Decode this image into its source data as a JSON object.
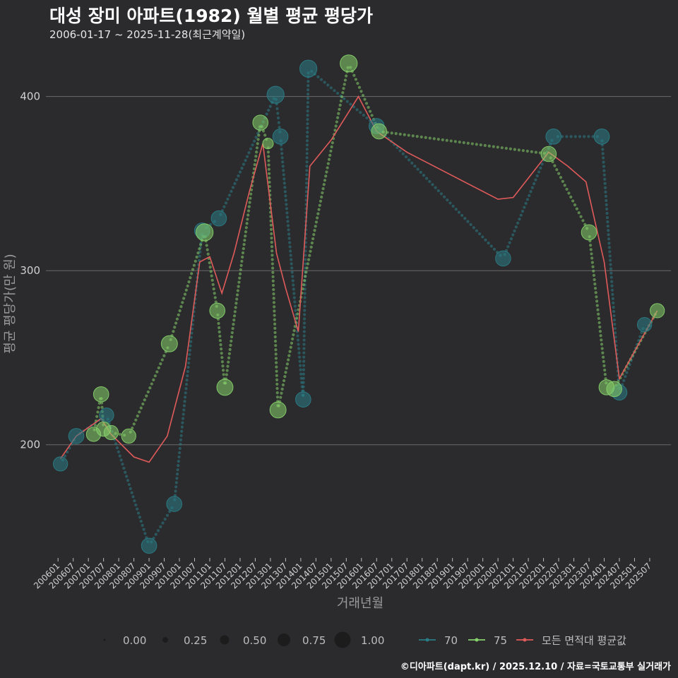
{
  "header": {
    "title": "대성 장미 아파트(1982) 월별 평균 평당가",
    "subtitle": "2006-01-17 ~ 2025-11-28(최근계약일)"
  },
  "footer": {
    "credit": "©디아파트(dapt.kr) / 2025.12.10 / 자료=국토교통부 실거래가"
  },
  "colors": {
    "background": "#2b2b2d",
    "grid": "#6b6b6b",
    "s70": "#2a7d86",
    "s75": "#86d16b",
    "avg": "#e05a5a"
  },
  "chart_data": {
    "type": "scatter",
    "title": "대성 장미 아파트(1982) 월별 평균 평당가",
    "xlabel": "거래년월",
    "ylabel": "평균 평당가(만 원)",
    "ylim": [
      135,
      425
    ],
    "yticks": [
      200,
      300,
      400
    ],
    "xticks": [
      "200601",
      "200607",
      "200701",
      "200707",
      "200801",
      "200807",
      "200901",
      "200907",
      "201001",
      "201007",
      "201101",
      "201107",
      "201201",
      "201207",
      "201301",
      "201307",
      "201401",
      "201407",
      "201501",
      "201507",
      "201601",
      "201607",
      "201701",
      "201707",
      "201801",
      "201807",
      "201901",
      "201907",
      "202001",
      "202007",
      "202101",
      "202107",
      "202201",
      "202207",
      "202301",
      "202307",
      "202401",
      "202407",
      "202501",
      "202507"
    ],
    "size_legend": {
      "values": [
        "0.00",
        "0.25",
        "0.50",
        "0.75",
        "1.00"
      ]
    },
    "series": [
      {
        "name": "70",
        "color": "#2a7d86",
        "points": [
          [
            2006.08,
            189,
            0.55
          ],
          [
            2006.6,
            205,
            0.6
          ],
          [
            2007.6,
            217,
            0.55
          ],
          [
            2009.0,
            142,
            0.6
          ],
          [
            2009.83,
            166,
            0.6
          ],
          [
            2010.75,
            323,
            0.6
          ],
          [
            2011.3,
            330,
            0.6
          ],
          [
            2013.17,
            401,
            0.7
          ],
          [
            2013.33,
            377,
            0.6
          ],
          [
            2014.08,
            226,
            0.6
          ],
          [
            2014.25,
            416,
            0.7
          ],
          [
            2016.5,
            383,
            0.6
          ],
          [
            2020.67,
            307,
            0.6
          ],
          [
            2022.33,
            377,
            0.6
          ],
          [
            2023.92,
            377,
            0.6
          ],
          [
            2024.5,
            230,
            0.6
          ],
          [
            2025.33,
            269,
            0.55
          ]
        ]
      },
      {
        "name": "75",
        "color": "#86d16b",
        "points": [
          [
            2007.17,
            206,
            0.55
          ],
          [
            2007.42,
            229,
            0.6
          ],
          [
            2007.5,
            209,
            0.55
          ],
          [
            2007.75,
            207,
            0.55
          ],
          [
            2008.33,
            205,
            0.55
          ],
          [
            2009.67,
            258,
            0.65
          ],
          [
            2010.83,
            322,
            0.7
          ],
          [
            2011.25,
            277,
            0.6
          ],
          [
            2011.5,
            233,
            0.65
          ],
          [
            2012.67,
            385,
            0.6
          ],
          [
            2012.92,
            373,
            0.35
          ],
          [
            2013.25,
            220,
            0.65
          ],
          [
            2015.58,
            419,
            0.7
          ],
          [
            2016.58,
            380,
            0.6
          ],
          [
            2022.17,
            367,
            0.6
          ],
          [
            2023.5,
            322,
            0.6
          ],
          [
            2024.08,
            233,
            0.6
          ],
          [
            2024.33,
            232,
            0.6
          ],
          [
            2025.75,
            277,
            0.55
          ]
        ]
      }
    ],
    "average": {
      "name": "모든 면적대 평균값",
      "color": "#e05a5a",
      "points": [
        [
          2006.08,
          192
        ],
        [
          2006.6,
          205
        ],
        [
          2007.42,
          215
        ],
        [
          2007.75,
          206
        ],
        [
          2008.5,
          193
        ],
        [
          2009.0,
          190
        ],
        [
          2009.6,
          205
        ],
        [
          2010.2,
          245
        ],
        [
          2010.67,
          305
        ],
        [
          2011.0,
          308
        ],
        [
          2011.4,
          287
        ],
        [
          2011.8,
          310
        ],
        [
          2012.3,
          345
        ],
        [
          2012.75,
          373
        ],
        [
          2013.2,
          310
        ],
        [
          2013.5,
          290
        ],
        [
          2013.92,
          265
        ],
        [
          2014.3,
          360
        ],
        [
          2015.0,
          375
        ],
        [
          2015.9,
          400
        ],
        [
          2016.5,
          380
        ],
        [
          2017.5,
          368
        ],
        [
          2020.5,
          341
        ],
        [
          2021.0,
          342
        ],
        [
          2022.17,
          368
        ],
        [
          2022.8,
          360
        ],
        [
          2023.4,
          351
        ],
        [
          2024.0,
          305
        ],
        [
          2024.5,
          238
        ],
        [
          2025.75,
          277
        ]
      ]
    }
  },
  "legend": {
    "s70": "70",
    "s75": "75",
    "avg": "모든 면적대 평균값"
  }
}
